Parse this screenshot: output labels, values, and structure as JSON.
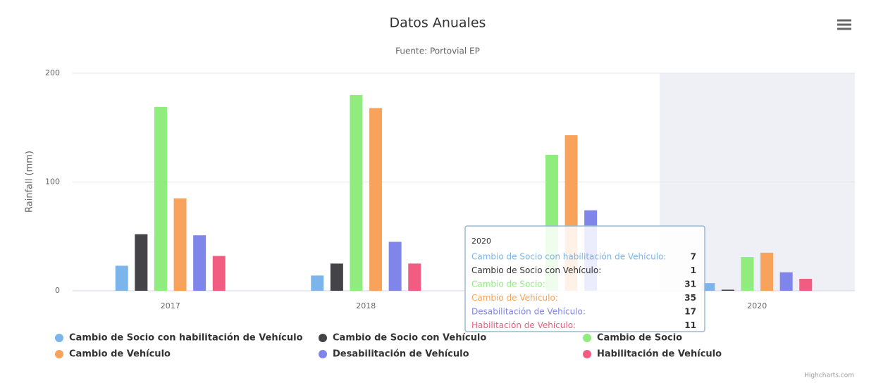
{
  "chart_data": {
    "type": "bar",
    "title": "Datos Anuales",
    "subtitle": "Fuente: Portovial EP",
    "y_axis_label": "Rainfall (mm)",
    "credits": "Highcharts.com",
    "categories": [
      "2017",
      "2018",
      null,
      "2020"
    ],
    "ylim": [
      0,
      200
    ],
    "yticks": [
      0,
      100,
      200
    ],
    "grid": true,
    "series": [
      {
        "name": "Cambio de Socio con habilitación de Vehículo",
        "color": "#7cb5ec",
        "values": [
          23,
          14,
          null,
          7
        ]
      },
      {
        "name": "Cambio de Socio con Vehículo",
        "color": "#434348",
        "values": [
          52,
          25,
          null,
          1
        ]
      },
      {
        "name": "Cambio de Socio",
        "color": "#90ed7d",
        "values": [
          169,
          180,
          125,
          31
        ]
      },
      {
        "name": "Cambio de Vehículo",
        "color": "#f7a35c",
        "values": [
          85,
          168,
          143,
          35
        ]
      },
      {
        "name": "Desabilitación de Vehículo",
        "color": "#8085e9",
        "values": [
          51,
          45,
          74,
          17
        ]
      },
      {
        "name": "Habilitación de Vehículo",
        "color": "#f15c80",
        "values": [
          32,
          25,
          null,
          11
        ]
      }
    ],
    "tooltip": {
      "rows": [
        "Cambio de Socio con habilitación de Vehículo:",
        "Cambio de Socio con Vehículo:",
        "Cambio de Socio:",
        "Cambio de Vehículo:",
        "Desabilitación de Vehículo:",
        "Habilitación de Vehículo:"
      ]
    }
  }
}
